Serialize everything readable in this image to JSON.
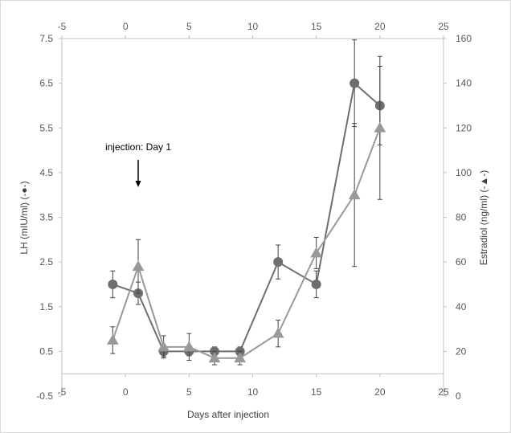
{
  "chart_data": {
    "type": "scatter",
    "xlabel": "Days after injection",
    "ylabel": "LH (mIU/ml) (-●-)",
    "y2label": "Estradiol (ng/ml) (-▲-)",
    "xlim": [
      -5,
      25
    ],
    "xticks": [
      -5,
      0,
      5,
      10,
      15,
      20,
      25
    ],
    "ylim": [
      -0.5,
      7.5
    ],
    "yticks": [
      -0.5,
      0.5,
      1.5,
      2.5,
      3.5,
      4.5,
      5.5,
      6.5,
      7.5
    ],
    "y2lim": [
      0,
      160
    ],
    "y2ticks": [
      0,
      20,
      40,
      60,
      80,
      100,
      120,
      140,
      160
    ],
    "grid": false,
    "series": [
      {
        "marker": "circle",
        "axis": "left",
        "color": "#6e6e6e",
        "x": [
          -1,
          1,
          3,
          5,
          7,
          9,
          12,
          15,
          18,
          20
        ],
        "y": [
          2.0,
          1.8,
          0.5,
          0.5,
          0.5,
          0.5,
          2.5,
          2.0,
          6.5,
          6.0
        ],
        "err": [
          0.3,
          0.25,
          0.12,
          0.1,
          0.1,
          0.1,
          0.38,
          0.3,
          0.97,
          0.88
        ]
      },
      {
        "marker": "triangle",
        "axis": "right",
        "color": "#999999",
        "x": [
          -1,
          1,
          3,
          5,
          7,
          9,
          12,
          15,
          18,
          20
        ],
        "y": [
          25,
          58,
          22,
          22,
          17,
          17,
          28,
          64,
          90,
          120
        ],
        "err": [
          6,
          12,
          5,
          6,
          3,
          3,
          6,
          7,
          32,
          32
        ]
      }
    ],
    "annotations": [
      {
        "text": "injection: Day 1",
        "x": 1,
        "arrow": "down"
      }
    ]
  }
}
